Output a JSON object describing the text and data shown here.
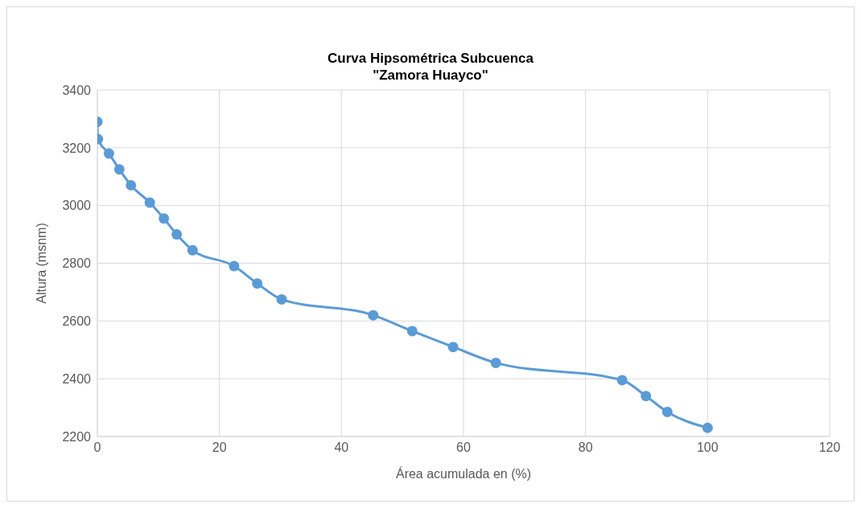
{
  "chart_data": {
    "type": "line",
    "title": "Curva Hipsométrica Subcuenca\n\"Zamora Huayco\"",
    "xlabel": "Área acumulada en (%)",
    "ylabel": "Altura (msnm)",
    "x": [
      0,
      0.1,
      1.9,
      3.6,
      5.5,
      8.6,
      10.9,
      13,
      15.6,
      22.4,
      26.2,
      30.2,
      45.2,
      51.6,
      58.3,
      65.3,
      86,
      89.9,
      93.4,
      100
    ],
    "series": [
      {
        "color": "#5b9bd5",
        "values": [
          3290,
          3230,
          3180,
          3125,
          3070,
          3010,
          2955,
          2900,
          2845,
          2790,
          2730,
          2675,
          2620,
          2565,
          2510,
          2455,
          2395,
          2340,
          2285,
          2230
        ]
      }
    ],
    "xlim": [
      0,
      120
    ],
    "xticks": [
      0,
      20,
      40,
      60,
      80,
      100,
      120
    ],
    "ylim": [
      2200,
      3400
    ],
    "yticks": [
      2200,
      2400,
      2600,
      2800,
      3000,
      3200,
      3400
    ],
    "grid": true,
    "legend": false,
    "marker": "circle",
    "line_style": "solid"
  }
}
